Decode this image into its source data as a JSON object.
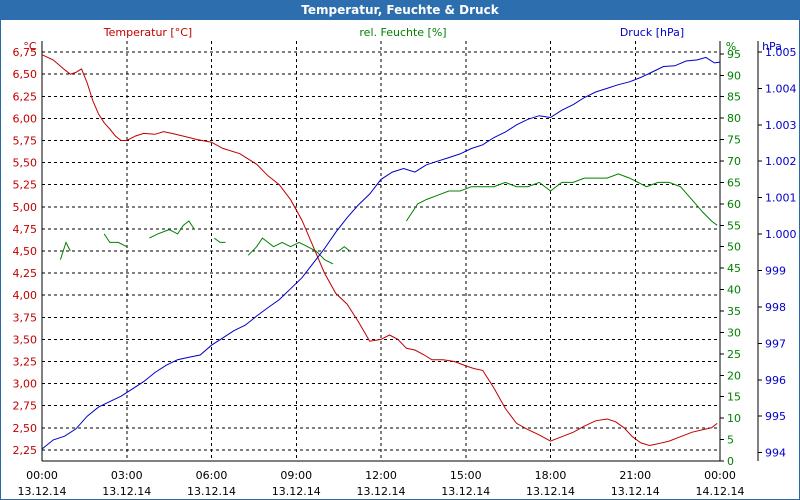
{
  "window": {
    "title": "Temperatur, Feuchte & Druck"
  },
  "chart_data": {
    "type": "line",
    "title": "Temperatur, Feuchte & Druck",
    "x": {
      "labels": [
        [
          "00:00",
          "13.12.14"
        ],
        [
          "03:00",
          "13.12.14"
        ],
        [
          "06:00",
          "13.12.14"
        ],
        [
          "09:00",
          "13.12.14"
        ],
        [
          "12:00",
          "13.12.14"
        ],
        [
          "15:00",
          "13.12.14"
        ],
        [
          "18:00",
          "13.12.14"
        ],
        [
          "21:00",
          "13.12.14"
        ],
        [
          "00:00",
          "14.12.14"
        ]
      ],
      "range_hours": [
        0,
        24
      ]
    },
    "axes": {
      "temperature": {
        "unit": "°C",
        "range": [
          2.125,
          6.875
        ],
        "ticks": [
          "2,25",
          "2,50",
          "2,75",
          "3,00",
          "3,25",
          "3,50",
          "3,75",
          "4,00",
          "4,25",
          "4,50",
          "4,75",
          "5,00",
          "5,25",
          "5,50",
          "5,75",
          "6,00",
          "6,25",
          "6,50",
          "6,75"
        ]
      },
      "humidity": {
        "unit": "%",
        "range": [
          0,
          98
        ],
        "ticks": [
          "0",
          "5",
          "10",
          "15",
          "20",
          "25",
          "30",
          "35",
          "40",
          "45",
          "50",
          "55",
          "60",
          "65",
          "70",
          "75",
          "80",
          "85",
          "90",
          "95"
        ]
      },
      "pressure": {
        "unit": "hPa",
        "range": [
          993.77,
          1005.3
        ],
        "ticks": [
          "994",
          "995",
          "996",
          "997",
          "998",
          "999",
          "1.000",
          "1.001",
          "1.002",
          "1.003",
          "1.004",
          "1.005"
        ]
      }
    },
    "series": [
      {
        "name": "Temperatur [°C]",
        "color": "#c00000",
        "axis": "temperature",
        "points": [
          [
            0,
            6.72
          ],
          [
            0.4,
            6.66
          ],
          [
            0.8,
            6.55
          ],
          [
            1.0,
            6.5
          ],
          [
            1.2,
            6.52
          ],
          [
            1.4,
            6.56
          ],
          [
            1.6,
            6.4
          ],
          [
            1.8,
            6.2
          ],
          [
            2.0,
            6.05
          ],
          [
            2.2,
            5.95
          ],
          [
            2.4,
            5.88
          ],
          [
            2.6,
            5.8
          ],
          [
            2.8,
            5.75
          ],
          [
            3.0,
            5.75
          ],
          [
            3.3,
            5.8
          ],
          [
            3.6,
            5.83
          ],
          [
            4.0,
            5.82
          ],
          [
            4.3,
            5.85
          ],
          [
            4.6,
            5.83
          ],
          [
            5.0,
            5.8
          ],
          [
            5.5,
            5.76
          ],
          [
            6.0,
            5.73
          ],
          [
            6.4,
            5.66
          ],
          [
            7.0,
            5.6
          ],
          [
            7.6,
            5.48
          ],
          [
            8.0,
            5.35
          ],
          [
            8.4,
            5.25
          ],
          [
            8.8,
            5.08
          ],
          [
            9.2,
            4.85
          ],
          [
            9.6,
            4.55
          ],
          [
            10.0,
            4.25
          ],
          [
            10.4,
            4.02
          ],
          [
            10.8,
            3.9
          ],
          [
            11.2,
            3.7
          ],
          [
            11.6,
            3.48
          ],
          [
            12.0,
            3.5
          ],
          [
            12.3,
            3.55
          ],
          [
            12.6,
            3.5
          ],
          [
            12.9,
            3.4
          ],
          [
            13.2,
            3.38
          ],
          [
            13.5,
            3.33
          ],
          [
            13.8,
            3.27
          ],
          [
            14.2,
            3.27
          ],
          [
            14.6,
            3.25
          ],
          [
            15.0,
            3.2
          ],
          [
            15.3,
            3.17
          ],
          [
            15.6,
            3.15
          ],
          [
            16.0,
            2.95
          ],
          [
            16.4,
            2.72
          ],
          [
            16.8,
            2.55
          ],
          [
            17.2,
            2.48
          ],
          [
            17.6,
            2.42
          ],
          [
            18.0,
            2.35
          ],
          [
            18.4,
            2.4
          ],
          [
            18.8,
            2.45
          ],
          [
            19.2,
            2.52
          ],
          [
            19.6,
            2.58
          ],
          [
            20.0,
            2.6
          ],
          [
            20.3,
            2.57
          ],
          [
            20.6,
            2.5
          ],
          [
            20.9,
            2.4
          ],
          [
            21.2,
            2.33
          ],
          [
            21.5,
            2.3
          ],
          [
            21.8,
            2.32
          ],
          [
            22.2,
            2.35
          ],
          [
            22.6,
            2.4
          ],
          [
            23.0,
            2.45
          ],
          [
            23.4,
            2.48
          ],
          [
            23.7,
            2.5
          ],
          [
            23.9,
            2.55
          ]
        ]
      },
      {
        "name": "rel. Feuchte [%]",
        "color": "#008000",
        "axis": "humidity",
        "segments": [
          [
            [
              0.65,
              47
            ],
            [
              0.85,
              51
            ],
            [
              1.0,
              49
            ]
          ],
          [
            [
              2.2,
              53
            ],
            [
              2.4,
              51
            ],
            [
              2.7,
              51
            ],
            [
              3.0,
              50
            ]
          ],
          [
            [
              3.8,
              52
            ],
            [
              4.1,
              53
            ],
            [
              4.5,
              54
            ],
            [
              4.8,
              53
            ],
            [
              5.0,
              55
            ],
            [
              5.2,
              56
            ],
            [
              5.4,
              54
            ]
          ],
          [
            [
              6.1,
              52
            ],
            [
              6.3,
              51
            ],
            [
              6.5,
              51
            ]
          ],
          [
            [
              7.3,
              48
            ],
            [
              7.6,
              50
            ],
            [
              7.8,
              52
            ],
            [
              8.0,
              51
            ],
            [
              8.2,
              50
            ],
            [
              8.5,
              51
            ],
            [
              8.8,
              50
            ],
            [
              9.1,
              51
            ],
            [
              9.4,
              50
            ],
            [
              9.7,
              49
            ],
            [
              10.0,
              47
            ],
            [
              10.3,
              46
            ]
          ],
          [
            [
              10.5,
              49
            ],
            [
              10.7,
              50
            ],
            [
              10.9,
              49
            ]
          ],
          [
            [
              12.9,
              56
            ],
            [
              13.1,
              58
            ],
            [
              13.3,
              60
            ],
            [
              13.6,
              61
            ],
            [
              14.0,
              62
            ],
            [
              14.4,
              63
            ],
            [
              14.8,
              63
            ],
            [
              15.2,
              64
            ],
            [
              15.6,
              64
            ],
            [
              16.0,
              64
            ],
            [
              16.4,
              65
            ],
            [
              16.8,
              64
            ],
            [
              17.2,
              64
            ],
            [
              17.6,
              65
            ],
            [
              18.0,
              63
            ],
            [
              18.4,
              65
            ],
            [
              18.8,
              65
            ],
            [
              19.2,
              66
            ],
            [
              19.6,
              66
            ],
            [
              20.0,
              66
            ],
            [
              20.4,
              67
            ],
            [
              20.8,
              66
            ],
            [
              21.1,
              65
            ],
            [
              21.4,
              64
            ],
            [
              21.8,
              65
            ],
            [
              22.2,
              65
            ],
            [
              22.6,
              64
            ],
            [
              23.0,
              61
            ],
            [
              23.4,
              58
            ],
            [
              23.7,
              56
            ],
            [
              23.9,
              55
            ]
          ]
        ]
      },
      {
        "name": "Druck [hPa]",
        "color": "#0000c8",
        "axis": "pressure",
        "points": [
          [
            0,
            994.1
          ],
          [
            0.4,
            994.35
          ],
          [
            0.8,
            994.45
          ],
          [
            1.2,
            994.65
          ],
          [
            1.6,
            995.0
          ],
          [
            2.0,
            995.25
          ],
          [
            2.4,
            995.4
          ],
          [
            2.8,
            995.55
          ],
          [
            3.2,
            995.75
          ],
          [
            3.6,
            995.95
          ],
          [
            4.0,
            996.2
          ],
          [
            4.4,
            996.4
          ],
          [
            4.8,
            996.55
          ],
          [
            5.2,
            996.62
          ],
          [
            5.6,
            996.68
          ],
          [
            6.0,
            996.95
          ],
          [
            6.4,
            997.15
          ],
          [
            6.8,
            997.35
          ],
          [
            7.2,
            997.5
          ],
          [
            7.6,
            997.75
          ],
          [
            8.0,
            997.98
          ],
          [
            8.4,
            998.2
          ],
          [
            8.8,
            998.5
          ],
          [
            9.2,
            998.8
          ],
          [
            9.6,
            999.2
          ],
          [
            10.0,
            999.6
          ],
          [
            10.4,
            1000.05
          ],
          [
            10.8,
            1000.45
          ],
          [
            11.2,
            1000.8
          ],
          [
            11.6,
            1001.1
          ],
          [
            12.0,
            1001.5
          ],
          [
            12.4,
            1001.7
          ],
          [
            12.8,
            1001.8
          ],
          [
            13.2,
            1001.7
          ],
          [
            13.6,
            1001.9
          ],
          [
            14.0,
            1002.0
          ],
          [
            14.4,
            1002.1
          ],
          [
            14.8,
            1002.2
          ],
          [
            15.2,
            1002.35
          ],
          [
            15.6,
            1002.45
          ],
          [
            16.0,
            1002.65
          ],
          [
            16.4,
            1002.8
          ],
          [
            16.8,
            1003.0
          ],
          [
            17.2,
            1003.15
          ],
          [
            17.6,
            1003.25
          ],
          [
            18.0,
            1003.2
          ],
          [
            18.4,
            1003.4
          ],
          [
            18.8,
            1003.55
          ],
          [
            19.2,
            1003.75
          ],
          [
            19.6,
            1003.9
          ],
          [
            20.0,
            1004.0
          ],
          [
            20.4,
            1004.1
          ],
          [
            20.8,
            1004.18
          ],
          [
            21.2,
            1004.3
          ],
          [
            21.6,
            1004.45
          ],
          [
            22.0,
            1004.6
          ],
          [
            22.4,
            1004.62
          ],
          [
            22.8,
            1004.75
          ],
          [
            23.2,
            1004.78
          ],
          [
            23.5,
            1004.85
          ],
          [
            23.8,
            1004.7
          ],
          [
            24.0,
            1004.72
          ]
        ]
      }
    ],
    "legend": {
      "temperature": "Temperatur [°C]",
      "humidity": "rel. Feuchte [%]",
      "pressure": "Druck [hPa]"
    },
    "grid": true
  }
}
